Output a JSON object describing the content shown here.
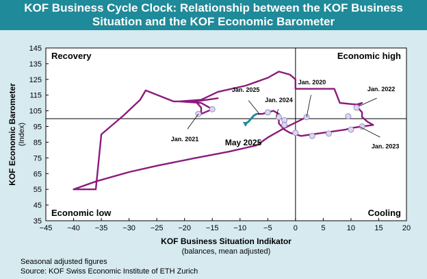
{
  "title": {
    "line1": "KOF Business Cycle Clock: Relationship between the KOF Business",
    "line2": "Situation and the KOF Economic Barometer"
  },
  "footer": {
    "note": "Seasonal adjusted figures",
    "source": "Source: KOF Swiss Economic Institute of ETH Zurich"
  },
  "colors": {
    "line": "#8b1a7c",
    "recent": "#1f8a99",
    "marker_fill": "#dcd6f0",
    "background": "#d6eaf0",
    "plot": "#ffffff"
  },
  "chart_data": {
    "type": "line",
    "title": "KOF Business Cycle Clock: Relationship between the KOF Business Situation and the KOF Economic Barometer",
    "xlabel": "KOF Business Situation Indikator",
    "xlabel2": "(balances, mean adjusted)",
    "ylabel": "KOF Economic Barometer",
    "ylabel2": "(Index)",
    "xlim": [
      -45,
      20
    ],
    "ylim": [
      35,
      145
    ],
    "x_ticks": [
      -45,
      -40,
      -35,
      -30,
      -25,
      -20,
      -15,
      -10,
      -5,
      0,
      5,
      10,
      15,
      20
    ],
    "y_ticks": [
      35,
      45,
      55,
      65,
      75,
      85,
      95,
      105,
      115,
      125,
      135,
      145
    ],
    "x_ref": 0,
    "y_ref": 100,
    "grid": false,
    "quadrants": {
      "top_left": "Recovery",
      "top_right": "Economic high",
      "bottom_left": "Economic low",
      "bottom_right": "Cooling"
    },
    "series": [
      {
        "values": [
          [
            2,
            101
          ],
          [
            -2,
            94
          ],
          [
            -5,
            88
          ],
          [
            -7,
            83
          ],
          [
            -12,
            79
          ],
          [
            -18,
            75
          ],
          [
            -25,
            70
          ],
          [
            -30,
            66
          ],
          [
            -36,
            60
          ],
          [
            -40,
            55
          ],
          [
            -36,
            55
          ],
          [
            -35,
            90
          ],
          [
            -31,
            102
          ],
          [
            -28,
            112
          ],
          [
            -27,
            118
          ],
          [
            -22,
            111
          ],
          [
            -18,
            111
          ],
          [
            -14,
            113
          ],
          [
            -18,
            111
          ],
          [
            -17,
            107
          ],
          [
            -17,
            103
          ],
          [
            -15,
            106
          ],
          [
            -17,
            110
          ],
          [
            -21,
            111
          ],
          [
            -17,
            112
          ],
          [
            -14,
            117
          ],
          [
            -9,
            121
          ],
          [
            -5,
            126
          ],
          [
            -3,
            130
          ],
          [
            -1,
            128
          ],
          [
            0,
            125
          ],
          [
            0,
            119
          ],
          [
            3,
            119
          ],
          [
            7,
            119
          ],
          [
            8,
            110
          ],
          [
            11,
            109
          ],
          [
            12,
            110
          ],
          [
            11,
            108
          ],
          [
            12,
            104
          ],
          [
            12,
            101
          ],
          [
            13,
            98
          ],
          [
            14,
            96
          ],
          [
            12,
            95
          ],
          [
            10,
            94
          ],
          [
            9,
            93
          ],
          [
            7,
            92
          ],
          [
            5,
            91
          ],
          [
            3,
            90
          ],
          [
            1,
            89
          ],
          [
            -1,
            91
          ],
          [
            -2,
            93
          ],
          [
            -3,
            97
          ],
          [
            -3,
            100
          ],
          [
            -3,
            103
          ],
          [
            -4,
            105
          ],
          [
            -5,
            104
          ],
          [
            -6,
            103
          ],
          [
            -7,
            103
          ]
        ]
      },
      {
        "values": [
          [
            -7,
            103
          ],
          [
            -7.5,
            102
          ],
          [
            -8,
            100
          ],
          [
            -8.5,
            98
          ],
          [
            -9,
            97
          ]
        ]
      }
    ],
    "markers": [
      [
        -17.5,
        103
      ],
      [
        -15,
        106
      ],
      [
        -5,
        104
      ],
      [
        -3,
        101
      ],
      [
        -2,
        99
      ],
      [
        2,
        101
      ],
      [
        9.5,
        101.5
      ],
      [
        11,
        107
      ],
      [
        12,
        95
      ],
      [
        10,
        93
      ],
      [
        6,
        90.5
      ],
      [
        3,
        89
      ],
      [
        0,
        91
      ],
      [
        -2,
        96
      ]
    ],
    "annotations": [
      {
        "text": "Jan. 2020",
        "at": [
          2,
          101
        ]
      },
      {
        "text": "Jan. 2021",
        "at": [
          -17.5,
          103
        ]
      },
      {
        "text": "Jan. 2022",
        "at": [
          11.5,
          108
        ]
      },
      {
        "text": "Jan. 2023",
        "at": [
          11.5,
          95
        ]
      },
      {
        "text": "Jan. 2024",
        "at": [
          -3.5,
          101
        ]
      },
      {
        "text": "Jan. 2025",
        "at": [
          -6.5,
          103
        ]
      },
      {
        "text": "May 2025",
        "at": [
          -9,
          97
        ]
      }
    ]
  }
}
